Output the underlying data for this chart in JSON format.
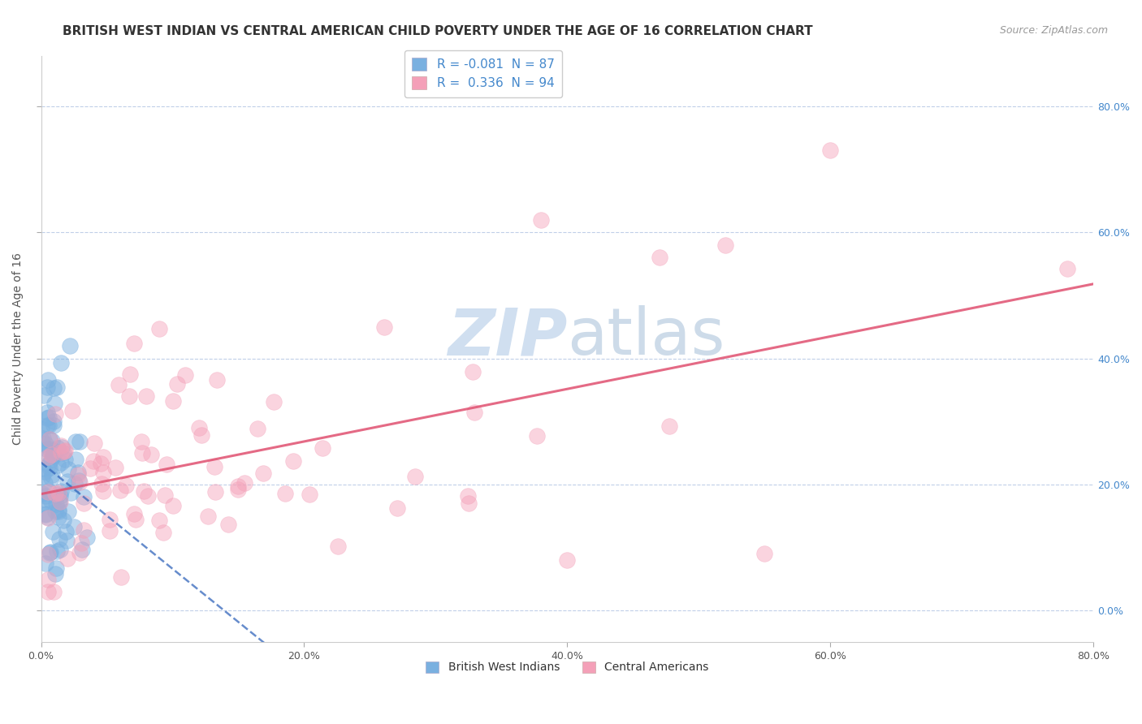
{
  "title": "BRITISH WEST INDIAN VS CENTRAL AMERICAN CHILD POVERTY UNDER THE AGE OF 16 CORRELATION CHART",
  "source": "Source: ZipAtlas.com",
  "xlim": [
    0.0,
    0.8
  ],
  "ylim": [
    -0.05,
    0.88
  ],
  "ylabel": "Child Poverty Under the Age of 16",
  "legend_label1": "British West Indians",
  "legend_label2": "Central Americans",
  "R_bwi": -0.081,
  "N_bwi": 87,
  "R_ca": 0.336,
  "N_ca": 94,
  "blue_scatter_color": "#7ab0e0",
  "pink_scatter_color": "#f4a0b8",
  "blue_line_color": "#3366bb",
  "pink_line_color": "#e05070",
  "watermark_color": "#d0dff0",
  "bg_color": "#ffffff",
  "grid_color": "#c0cfe8",
  "title_fontsize": 11,
  "source_fontsize": 9,
  "axis_label_fontsize": 10,
  "tick_fontsize": 9,
  "tick_color_blue": "#4488cc",
  "tick_color_dark": "#555555"
}
